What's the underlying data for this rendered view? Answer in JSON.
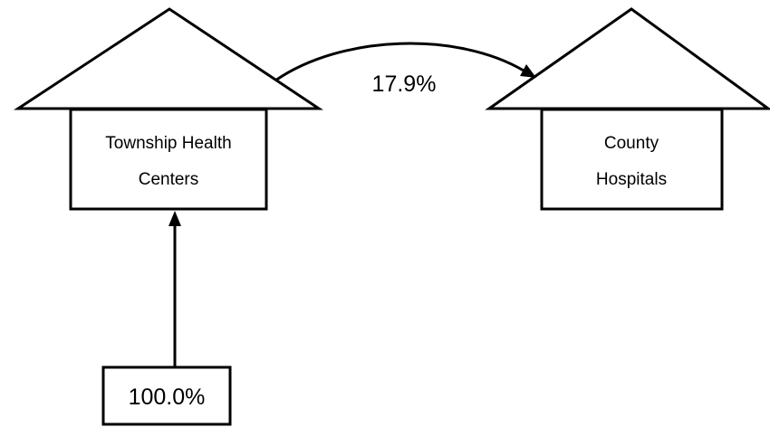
{
  "nodes": {
    "township": {
      "line1": "Township Health",
      "line2": "Centers"
    },
    "county": {
      "line1": "County",
      "line2": "Hospitals"
    },
    "source": {
      "label": "100.0%"
    }
  },
  "edges": {
    "township_to_county": {
      "label": "17.9%"
    }
  },
  "colors": {
    "stroke": "#000000",
    "background": "#ffffff"
  }
}
